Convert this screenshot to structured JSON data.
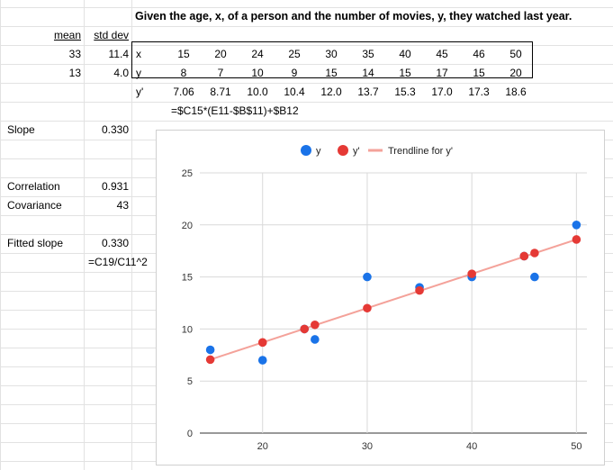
{
  "title": "Given the age, x, of a person and the number of movies, y, they watched last year.",
  "stats_table": {
    "headers": [
      "mean",
      "std dev"
    ],
    "rows": [
      [
        "33",
        "11.4"
      ],
      [
        "13",
        "4.0"
      ]
    ]
  },
  "data_table": {
    "row_labels": [
      "x",
      "y",
      "y'"
    ],
    "x": [
      "15",
      "20",
      "24",
      "25",
      "30",
      "35",
      "40",
      "45",
      "46",
      "50"
    ],
    "y": [
      "8",
      "7",
      "10",
      "9",
      "15",
      "14",
      "15",
      "17",
      "15",
      "20"
    ],
    "yprime": [
      "7.06",
      "8.71",
      "10.0",
      "10.4",
      "12.0",
      "13.7",
      "15.3",
      "17.0",
      "17.3",
      "18.6"
    ],
    "formula": "=$C15*(E11-$B$11)+$B12"
  },
  "left_stats": {
    "slope_label": "Slope",
    "slope_value": "0.330",
    "correlation_label": "Correlation",
    "correlation_value": "0.931",
    "covariance_label": "Covariance",
    "covariance_value": "43",
    "fitted_label": "Fitted slope",
    "fitted_value": "0.330",
    "fitted_formula": "=C19/C11^2"
  },
  "chart_data": {
    "type": "scatter",
    "title": "",
    "xlabel": "",
    "ylabel": "",
    "xlim": [
      14,
      51
    ],
    "ylim": [
      0,
      25
    ],
    "xticks": [
      20,
      30,
      40,
      50
    ],
    "yticks": [
      0,
      5,
      10,
      15,
      20,
      25
    ],
    "grid": true,
    "legend_position": "top",
    "series": [
      {
        "name": "y",
        "type": "scatter",
        "color": "#1a73e8",
        "x": [
          15,
          20,
          24,
          25,
          30,
          35,
          40,
          45,
          46,
          50
        ],
        "y": [
          8,
          7,
          10,
          9,
          15,
          14,
          15,
          17,
          15,
          20
        ]
      },
      {
        "name": "y'",
        "type": "scatter",
        "color": "#e53935",
        "x": [
          15,
          20,
          24,
          25,
          30,
          35,
          40,
          45,
          46,
          50
        ],
        "y": [
          7.06,
          8.71,
          10.0,
          10.4,
          12.0,
          13.7,
          15.3,
          17.0,
          17.3,
          18.6
        ]
      },
      {
        "name": "Trendline for y'",
        "type": "line",
        "color": "#f4a29a",
        "x": [
          15,
          50
        ],
        "y": [
          7.06,
          18.6
        ]
      }
    ]
  }
}
